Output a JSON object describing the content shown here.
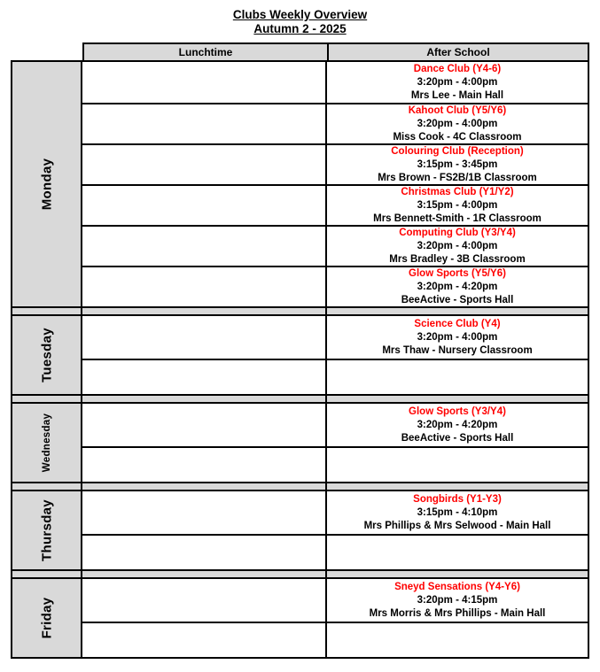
{
  "title": "Clubs Weekly Overview",
  "subtitle": "Autumn 2 - 2025",
  "colors": {
    "shading": "#d9d9d9",
    "club_name_red": "#ff0000",
    "border": "#000000"
  },
  "columns": {
    "lunchtime": "Lunchtime",
    "after_school": "After School"
  },
  "days": [
    {
      "label": "Monday",
      "lunchtime": [
        "",
        "",
        "",
        "",
        "",
        ""
      ],
      "after_school": [
        {
          "title": "Dance Club (Y4-6)",
          "time": "3:20pm - 4:00pm",
          "staff": "Mrs Lee - Main Hall"
        },
        {
          "title": "Kahoot Club (Y5/Y6)",
          "time": "3:20pm - 4:00pm",
          "staff": "Miss Cook - 4C Classroom"
        },
        {
          "title": "Colouring Club (Reception)",
          "time": "3:15pm - 3:45pm",
          "staff": "Mrs Brown - FS2B/1B Classroom"
        },
        {
          "title": "Christmas Club (Y1/Y2)",
          "time": "3:15pm - 4:00pm",
          "staff": "Mrs Bennett-Smith - 1R Classroom"
        },
        {
          "title": "Computing Club (Y3/Y4)",
          "time": "3:20pm - 4:00pm",
          "staff": "Mrs Bradley - 3B Classroom"
        },
        {
          "title": "Glow Sports (Y5/Y6)",
          "time": "3:20pm - 4:20pm",
          "staff": "BeeActive - Sports Hall"
        }
      ]
    },
    {
      "label": "Tuesday",
      "lunchtime": [
        "",
        ""
      ],
      "after_school": [
        {
          "title": "Science Club (Y4)",
          "time": "3:20pm - 4:00pm",
          "staff": "Mrs Thaw - Nursery Classroom"
        },
        {
          "title": "",
          "time": "",
          "staff": ""
        }
      ]
    },
    {
      "label": "Wednesday",
      "lunchtime": [
        "",
        ""
      ],
      "after_school": [
        {
          "title": "Glow Sports (Y3/Y4)",
          "time": "3:20pm - 4:20pm",
          "staff": "BeeActive - Sports Hall"
        },
        {
          "title": "",
          "time": "",
          "staff": ""
        }
      ]
    },
    {
      "label": "Thursday",
      "lunchtime": [
        "",
        ""
      ],
      "after_school": [
        {
          "title": "Songbirds (Y1-Y3)",
          "time": "3:15pm - 4:10pm",
          "staff": "Mrs Phillips & Mrs Selwood - Main Hall"
        },
        {
          "title": "",
          "time": "",
          "staff": ""
        }
      ]
    },
    {
      "label": "Friday",
      "lunchtime": [
        "",
        ""
      ],
      "after_school": [
        {
          "title": "Sneyd Sensations (Y4-Y6)",
          "time": "3:20pm - 4:15pm",
          "staff": "Mrs Morris & Mrs Phillips - Main Hall"
        },
        {
          "title": "",
          "time": "",
          "staff": ""
        }
      ]
    }
  ]
}
